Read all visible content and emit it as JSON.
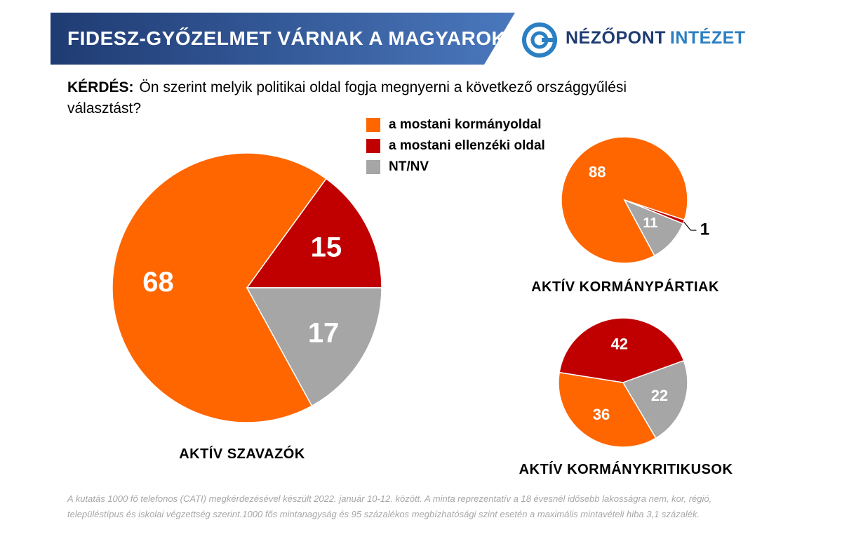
{
  "header": {
    "title": "FIDESZ-GYŐZELMET VÁRNAK A MAGYAROK",
    "logo_part1": "NÉZŐPONT",
    "logo_part2": "INTÉZET",
    "logo_icon": "nezopont-logo-icon"
  },
  "question": {
    "label": "KÉRDÉS:",
    "text": "Ön szerint melyik politikai oldal fogja megnyerni a következő országgyűlési választást?"
  },
  "colors": {
    "kormanyoldal": "#ff6600",
    "ellenzek": "#c00000",
    "ntnv": "#a6a6a6",
    "banner_dark": "#1f3b73",
    "banner_light": "#4a78bd"
  },
  "legend": [
    {
      "label": "a mostani kormányoldal",
      "color": "#ff6600"
    },
    {
      "label": "a mostani ellenzéki oldal",
      "color": "#c00000"
    },
    {
      "label": "NT/NV",
      "color": "#a6a6a6"
    }
  ],
  "chart_data": [
    {
      "type": "pie",
      "title": "AKTÍV SZAVAZÓK",
      "categories": [
        "a mostani kormányoldal",
        "a mostani ellenzéki oldal",
        "NT/NV"
      ],
      "values": [
        68,
        15,
        17
      ],
      "labels": [
        "68",
        "15",
        "17"
      ]
    },
    {
      "type": "pie",
      "title": "AKTÍV KORMÁNYPÁRTIAK",
      "categories": [
        "a mostani kormányoldal",
        "a mostani ellenzéki oldal",
        "NT/NV"
      ],
      "values": [
        88,
        1,
        11
      ],
      "labels": [
        "88",
        "1",
        "11"
      ]
    },
    {
      "type": "pie",
      "title": "AKTÍV KORMÁNYKRITIKUSOK",
      "categories": [
        "a mostani kormányoldal",
        "a mostani ellenzéki oldal",
        "NT/NV"
      ],
      "values": [
        36,
        42,
        22
      ],
      "labels": [
        "36",
        "42",
        "22"
      ]
    }
  ],
  "footnote": "A kutatás 1000 fő telefonos (CATI) megkérdezésével készült 2022. január 10-12. között. A minta reprezentatív a 18 évesnél idősebb lakosságra nem, kor, régió, településtípus és iskolai végzettség szerint.1000 fős mintanagyság és 95 százalékos megbízhatósági szint esetén a maximális mintavételi hiba 3,1 százalék."
}
